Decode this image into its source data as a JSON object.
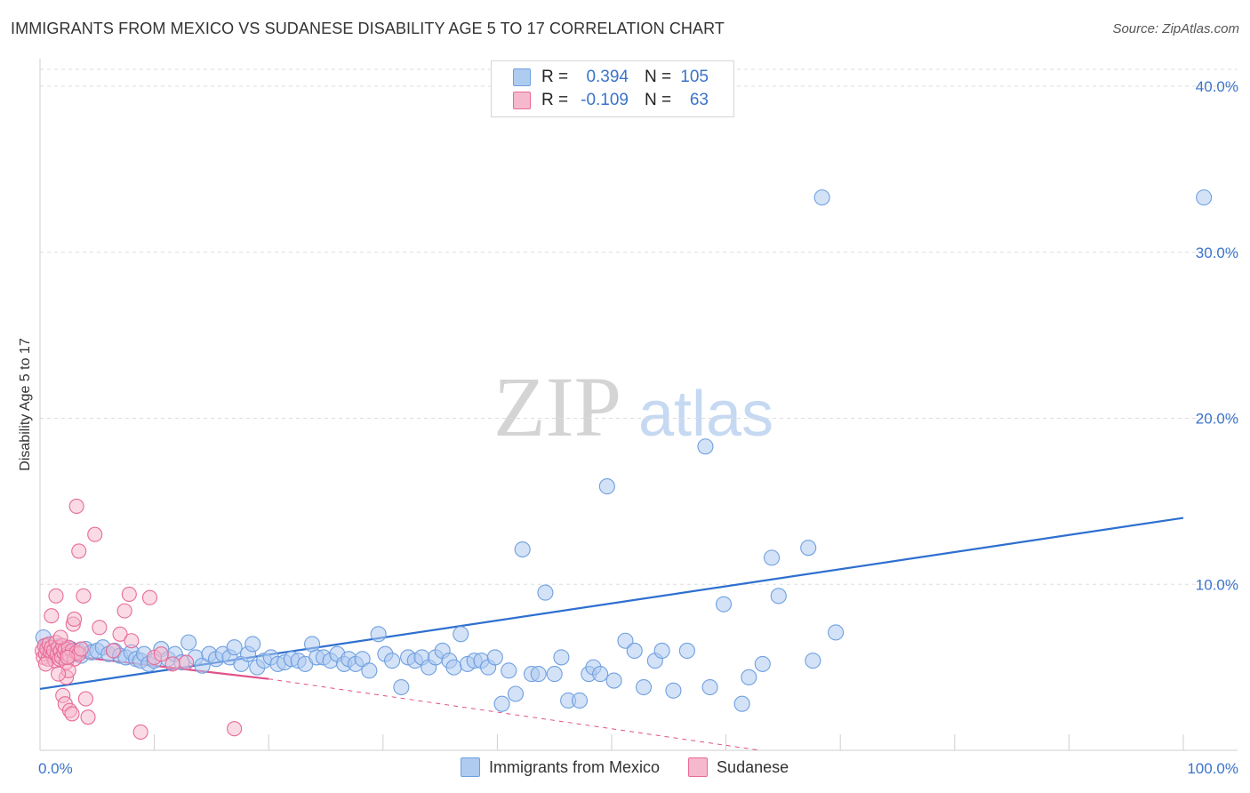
{
  "title": "IMMIGRANTS FROM MEXICO VS SUDANESE DISABILITY AGE 5 TO 17 CORRELATION CHART",
  "source": "Source: ZipAtlas.com",
  "watermark": {
    "zip": "ZIP",
    "atlas": "atlas"
  },
  "colors": {
    "blue": "#6fa0e0",
    "blue_fill": "#aecbf0",
    "blue_line": "#2e6fd0",
    "pink": "#e86a98",
    "pink_fill": "#f5b8cc",
    "pink_line": "#e0528a",
    "grid": "#dddddd",
    "axis_label": "#3b73c9"
  },
  "legend": {
    "rows": [
      {
        "r_label": "R =",
        "r_value": "0.394",
        "n_label": "N =",
        "n_value": "105"
      },
      {
        "r_label": "R =",
        "r_value": "-0.109",
        "n_label": "N =",
        "n_value": "63"
      }
    ]
  },
  "bottom_legend": {
    "series1": "Immigrants from Mexico",
    "series2": "Sudanese"
  },
  "chart_data": {
    "type": "scatter",
    "title": "IMMIGRANTS FROM MEXICO VS SUDANESE DISABILITY AGE 5 TO 17 CORRELATION CHART",
    "xlabel": "",
    "ylabel": "Disability Age 5 to 17",
    "xlim": [
      0,
      100
    ],
    "ylim": [
      0,
      41
    ],
    "y_ticks": [
      10,
      20,
      30,
      40
    ],
    "y_tick_labels": [
      "10.0%",
      "20.0%",
      "30.0%",
      "40.0%"
    ],
    "x_tick_labels": [
      "0.0%",
      "100.0%"
    ],
    "grid": true,
    "series": [
      {
        "name": "Immigrants from Mexico",
        "color": "#6fa0e0",
        "trend": {
          "x": [
            0,
            100
          ],
          "y": [
            3.7,
            14.0
          ],
          "style": "solid"
        },
        "points": [
          [
            0.3,
            6.8
          ],
          [
            0.6,
            6.3
          ],
          [
            0.9,
            6.0
          ],
          [
            1.2,
            5.8
          ],
          [
            1.5,
            6.1
          ],
          [
            1.8,
            6.3
          ],
          [
            2.1,
            5.6
          ],
          [
            2.4,
            5.9
          ],
          [
            2.7,
            6.1
          ],
          [
            3.0,
            5.8
          ],
          [
            3.3,
            6.0
          ],
          [
            3.6,
            5.7
          ],
          [
            4.0,
            6.1
          ],
          [
            4.5,
            5.9
          ],
          [
            5.0,
            6.0
          ],
          [
            5.5,
            6.2
          ],
          [
            6.0,
            5.8
          ],
          [
            6.5,
            6.0
          ],
          [
            7.0,
            5.7
          ],
          [
            7.5,
            5.6
          ],
          [
            8.0,
            5.9
          ],
          [
            8.4,
            5.5
          ],
          [
            8.8,
            5.4
          ],
          [
            9.1,
            5.8
          ],
          [
            9.5,
            5.2
          ],
          [
            10.0,
            5.4
          ],
          [
            10.6,
            6.1
          ],
          [
            11.2,
            5.5
          ],
          [
            11.8,
            5.8
          ],
          [
            12.4,
            5.3
          ],
          [
            13.0,
            6.5
          ],
          [
            13.6,
            5.6
          ],
          [
            14.2,
            5.1
          ],
          [
            14.8,
            5.8
          ],
          [
            15.4,
            5.5
          ],
          [
            16.0,
            5.8
          ],
          [
            16.6,
            5.6
          ],
          [
            17.0,
            6.2
          ],
          [
            17.6,
            5.2
          ],
          [
            18.2,
            5.8
          ],
          [
            18.6,
            6.4
          ],
          [
            19.0,
            5.0
          ],
          [
            19.6,
            5.4
          ],
          [
            20.2,
            5.6
          ],
          [
            20.8,
            5.2
          ],
          [
            21.4,
            5.3
          ],
          [
            22.0,
            5.5
          ],
          [
            22.6,
            5.4
          ],
          [
            23.2,
            5.2
          ],
          [
            23.8,
            6.4
          ],
          [
            24.2,
            5.6
          ],
          [
            24.8,
            5.6
          ],
          [
            25.4,
            5.4
          ],
          [
            26.0,
            5.8
          ],
          [
            26.6,
            5.2
          ],
          [
            27.0,
            5.5
          ],
          [
            27.6,
            5.2
          ],
          [
            28.2,
            5.5
          ],
          [
            28.8,
            4.8
          ],
          [
            29.6,
            7.0
          ],
          [
            30.2,
            5.8
          ],
          [
            30.8,
            5.4
          ],
          [
            31.6,
            3.8
          ],
          [
            32.2,
            5.6
          ],
          [
            32.8,
            5.4
          ],
          [
            33.4,
            5.6
          ],
          [
            34.0,
            5.0
          ],
          [
            34.6,
            5.6
          ],
          [
            35.2,
            6.0
          ],
          [
            35.8,
            5.4
          ],
          [
            36.2,
            5.0
          ],
          [
            36.8,
            7.0
          ],
          [
            37.4,
            5.2
          ],
          [
            38.0,
            5.4
          ],
          [
            38.6,
            5.4
          ],
          [
            39.2,
            5.0
          ],
          [
            39.8,
            5.6
          ],
          [
            40.4,
            2.8
          ],
          [
            41.0,
            4.8
          ],
          [
            41.6,
            3.4
          ],
          [
            42.2,
            12.1
          ],
          [
            43.0,
            4.6
          ],
          [
            43.6,
            4.6
          ],
          [
            44.2,
            9.5
          ],
          [
            45.0,
            4.6
          ],
          [
            45.6,
            5.6
          ],
          [
            46.2,
            3.0
          ],
          [
            47.2,
            3.0
          ],
          [
            48.0,
            4.6
          ],
          [
            48.4,
            5.0
          ],
          [
            49.0,
            4.6
          ],
          [
            49.6,
            15.9
          ],
          [
            50.2,
            4.2
          ],
          [
            51.2,
            6.6
          ],
          [
            52.0,
            6.0
          ],
          [
            52.8,
            3.8
          ],
          [
            53.8,
            5.4
          ],
          [
            54.4,
            6.0
          ],
          [
            55.4,
            3.6
          ],
          [
            56.6,
            6.0
          ],
          [
            58.2,
            18.3
          ],
          [
            58.6,
            3.8
          ],
          [
            59.8,
            8.8
          ],
          [
            61.4,
            2.8
          ],
          [
            62.0,
            4.4
          ],
          [
            63.2,
            5.2
          ],
          [
            64.0,
            11.6
          ],
          [
            64.6,
            9.3
          ],
          [
            67.2,
            12.2
          ],
          [
            67.6,
            5.4
          ],
          [
            68.4,
            33.3
          ],
          [
            69.6,
            7.1
          ],
          [
            101.8,
            33.3
          ]
        ]
      },
      {
        "name": "Sudanese",
        "color": "#e86a98",
        "trend": {
          "x": [
            0,
            20
          ],
          "y": [
            5.9,
            4.3
          ],
          "style": "solid",
          "extension": {
            "x": [
              20,
              63
            ],
            "y": [
              4.3,
              0.0
            ],
            "style": "dashed"
          }
        },
        "points": [
          [
            0.2,
            6.0
          ],
          [
            0.3,
            5.6
          ],
          [
            0.4,
            6.3
          ],
          [
            0.5,
            5.8
          ],
          [
            0.6,
            6.1
          ],
          [
            0.7,
            5.5
          ],
          [
            0.8,
            6.4
          ],
          [
            0.9,
            5.9
          ],
          [
            1.0,
            6.2
          ],
          [
            1.1,
            5.7
          ],
          [
            1.2,
            6.0
          ],
          [
            1.3,
            5.4
          ],
          [
            1.4,
            6.5
          ],
          [
            1.5,
            5.8
          ],
          [
            1.6,
            6.2
          ],
          [
            1.7,
            5.5
          ],
          [
            1.8,
            6.0
          ],
          [
            1.9,
            5.6
          ],
          [
            2.0,
            6.3
          ],
          [
            2.1,
            5.9
          ],
          [
            2.2,
            6.1
          ],
          [
            2.3,
            5.3
          ],
          [
            2.4,
            5.8
          ],
          [
            2.5,
            6.2
          ],
          [
            2.6,
            5.7
          ],
          [
            2.8,
            6.0
          ],
          [
            3.0,
            5.5
          ],
          [
            3.2,
            5.9
          ],
          [
            3.4,
            5.8
          ],
          [
            3.6,
            6.1
          ],
          [
            0.5,
            5.2
          ],
          [
            1.0,
            8.1
          ],
          [
            1.4,
            9.3
          ],
          [
            1.8,
            6.8
          ],
          [
            2.0,
            3.3
          ],
          [
            2.2,
            2.8
          ],
          [
            2.3,
            4.4
          ],
          [
            2.5,
            4.8
          ],
          [
            2.6,
            2.4
          ],
          [
            2.8,
            2.2
          ],
          [
            2.9,
            7.6
          ],
          [
            3.0,
            7.9
          ],
          [
            3.2,
            14.7
          ],
          [
            3.4,
            12.0
          ],
          [
            3.8,
            9.3
          ],
          [
            4.0,
            3.1
          ],
          [
            4.2,
            2.0
          ],
          [
            4.8,
            13.0
          ],
          [
            5.2,
            7.4
          ],
          [
            6.4,
            6.0
          ],
          [
            7.0,
            7.0
          ],
          [
            7.4,
            8.4
          ],
          [
            7.8,
            9.4
          ],
          [
            8.0,
            6.6
          ],
          [
            8.8,
            1.1
          ],
          [
            9.6,
            9.2
          ],
          [
            10.0,
            5.6
          ],
          [
            10.6,
            5.8
          ],
          [
            11.6,
            5.2
          ],
          [
            12.8,
            5.3
          ],
          [
            17.0,
            1.3
          ],
          [
            1.6,
            4.6
          ],
          [
            2.4,
            5.6
          ]
        ]
      }
    ]
  }
}
